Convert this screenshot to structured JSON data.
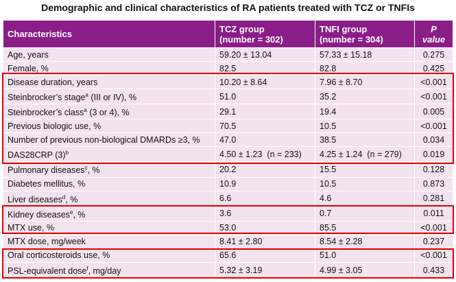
{
  "title": "Demographic and clinical characteristics of RA patients treated with TCZ or TNFIs",
  "header": {
    "characteristics": "Characteristics",
    "tcz_line1": "TCZ group",
    "tcz_line2": "(number = 302)",
    "tnfi_line1": "TNFI group",
    "tnfi_line2": "(number = 304)",
    "p_value": "P value"
  },
  "rows": [
    {
      "label": "Age, years",
      "tcz": "59.20 ± 13.04",
      "tnfi": "57.33 ± 15.18",
      "p": "0.275"
    },
    {
      "label": "Female, %",
      "tcz": "82.5",
      "tnfi": "82.8",
      "p": "0.425"
    },
    {
      "label": "Disease duration, years",
      "tcz": "10.20 ± 8.64",
      "tnfi": "7.96 ± 8.70",
      "p": "<0.001"
    },
    {
      "label": "Steinbrocker’s stage",
      "sup": "a",
      "label_after": " (III or IV), %",
      "tcz": "51.0",
      "tnfi": "35.2",
      "p": "<0.001"
    },
    {
      "label": "Steinbrocker’s class",
      "sup": "a",
      "label_after": " (3 or 4), %",
      "tcz": "29.1",
      "tnfi": "19.4",
      "p": "0.005"
    },
    {
      "label": "Previous biologic use, %",
      "tcz": "70.5",
      "tnfi": "10.5",
      "p": "<0.001"
    },
    {
      "label": "Number of previous non-biological  DMARDs ≥3, %",
      "tcz": "47.0",
      "tnfi": "38.5",
      "p": "0.034"
    },
    {
      "label": "DAS28CRP (3)",
      "sup": "b",
      "tcz": "4.50 ± 1.23  (n = 233)",
      "tnfi": "4.25 ± 1.24  (n = 279)",
      "p": "0.019"
    },
    {
      "label": "Pulmonary diseases",
      "sup": "c",
      "label_after": ", %",
      "tcz": "20.2",
      "tnfi": "15.5",
      "p": "0.128"
    },
    {
      "label": "Diabetes mellitus, %",
      "tcz": "10.9",
      "tnfi": "10.5",
      "p": "0.873"
    },
    {
      "label": "Liver diseases",
      "sup": "d",
      "label_after": ", %",
      "tcz": "6.6",
      "tnfi": "4.6",
      "p": "0.281"
    },
    {
      "label": "Kidney diseases",
      "sup": "e",
      "label_after": ", %",
      "tcz": "3.6",
      "tnfi": "0.7",
      "p": "0.011"
    },
    {
      "label": "MTX use, %",
      "tcz": "53.0",
      "tnfi": "85.5",
      "p": "<0.001"
    },
    {
      "label": "MTX dose, mg/week",
      "tcz": "8.41 ± 2.80",
      "tnfi": "8.54 ± 2.28",
      "p": "0.237"
    },
    {
      "label": "Oral corticosteroids use, %",
      "tcz": "65.6",
      "tnfi": "51.0",
      "p": "<0.001"
    },
    {
      "label": "PSL-equivalent dose",
      "sup": "f",
      "label_after": ", mg/day",
      "tcz": "5.32 ± 3.19",
      "tnfi": "4.99 ± 3.05",
      "p": "0.433"
    }
  ],
  "highlight_color": "#e00000",
  "header_color": "#8a1d87",
  "row_color": "#f3e3ef"
}
